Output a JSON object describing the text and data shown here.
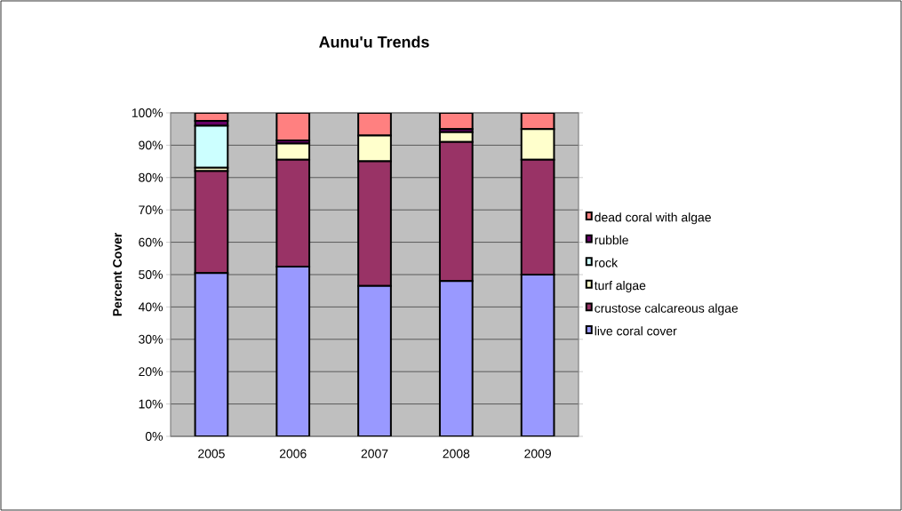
{
  "chart_data": {
    "type": "bar",
    "title": "Aunu'u Trends",
    "ylabel": "Percent Cover",
    "stacked": true,
    "categories": [
      "2005",
      "2006",
      "2007",
      "2008",
      "2009"
    ],
    "series": [
      {
        "name": "live coral cover",
        "color": "#9999ff",
        "values": [
          50.5,
          52.5,
          46.5,
          48,
          50
        ]
      },
      {
        "name": "crustose calcareous algae",
        "color": "#993366",
        "values": [
          31.5,
          33,
          38.5,
          43,
          35.5
        ]
      },
      {
        "name": "turf algae",
        "color": "#ffffcc",
        "values": [
          1,
          5,
          8,
          3,
          9.5
        ]
      },
      {
        "name": "rock",
        "color": "#ccffff",
        "values": [
          13,
          0,
          0,
          0,
          0
        ]
      },
      {
        "name": "rubble",
        "color": "#660066",
        "values": [
          1.5,
          1,
          null,
          1,
          0
        ]
      },
      {
        "name": "dead coral with algae",
        "color": "#ff8080",
        "values": [
          2.5,
          8.5,
          7,
          5,
          5
        ]
      }
    ],
    "ylim": [
      0,
      100
    ],
    "yticks": [
      {
        "value": 0,
        "label": "0%"
      },
      {
        "value": 10,
        "label": "10%"
      },
      {
        "value": 20,
        "label": "20%"
      },
      {
        "value": 30,
        "label": "30%"
      },
      {
        "value": 40,
        "label": "40%"
      },
      {
        "value": 50,
        "label": "50%"
      },
      {
        "value": 60,
        "label": "60%"
      },
      {
        "value": 70,
        "label": "70%"
      },
      {
        "value": 80,
        "label": "80%"
      },
      {
        "value": 90,
        "label": "90%"
      },
      {
        "value": 100,
        "label": "100%"
      }
    ],
    "grid": "y",
    "legend": "right"
  }
}
